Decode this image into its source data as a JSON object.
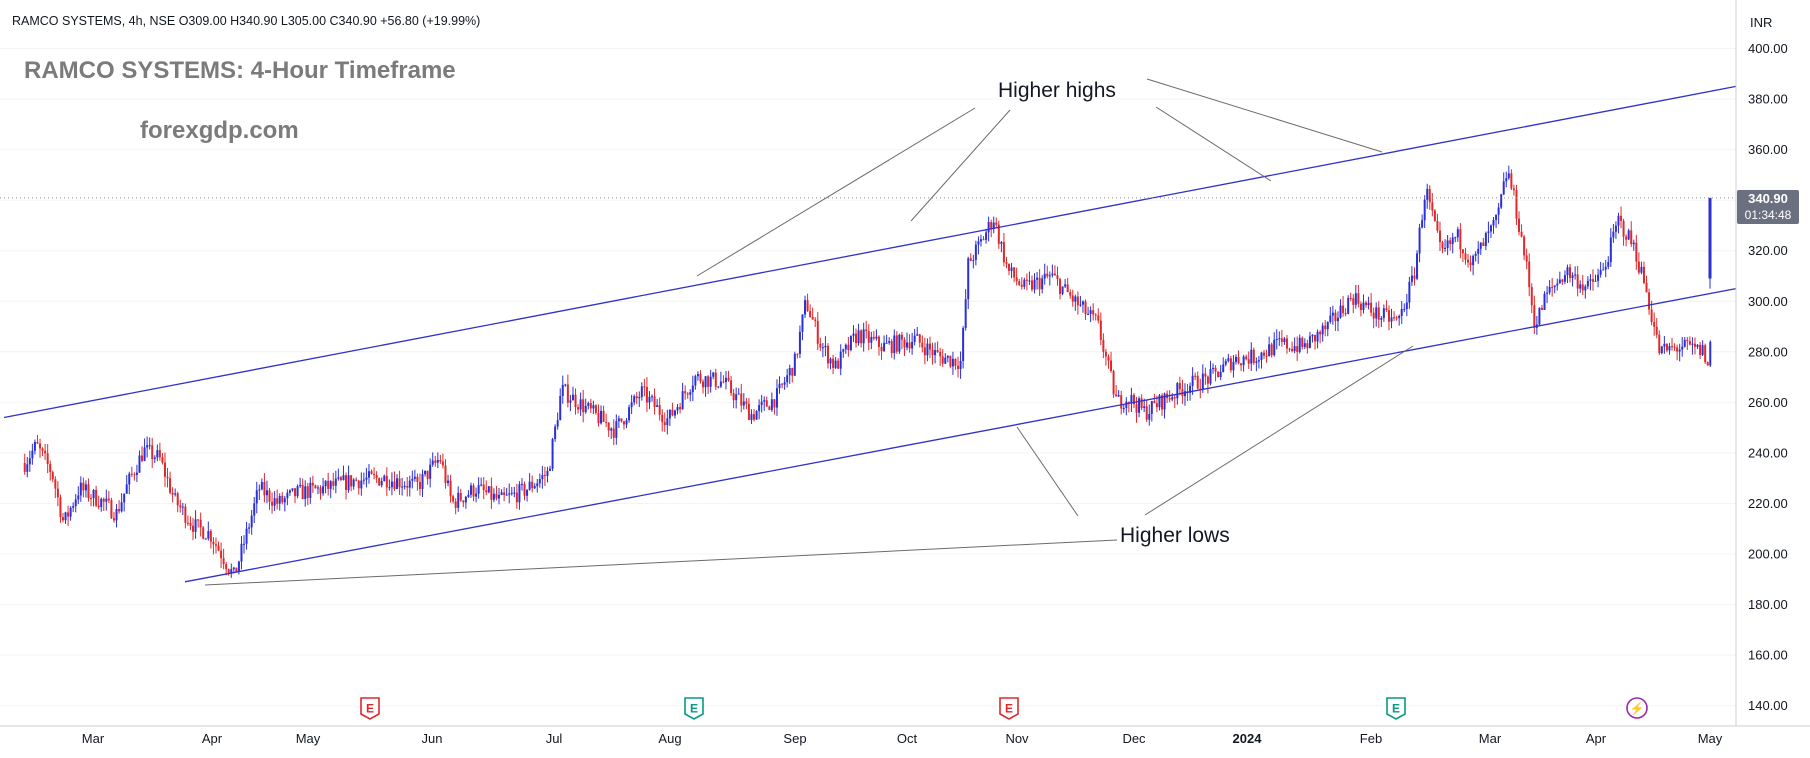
{
  "header": {
    "symbol": "RAMCO SYSTEMS",
    "timeframe": "4h",
    "exchange": "NSE",
    "ohlc_line": "RAMCO SYSTEMS, 4h, NSE  O309.00  H340.90  L305.00  C340.90  +56.80 (+19.99%)"
  },
  "watermark": {
    "title": "RAMCO SYSTEMS: 4-Hour Timeframe",
    "site": "forexgdp.com"
  },
  "currency": "INR",
  "price_tag": {
    "price": "340.90",
    "countdown": "01:34:48"
  },
  "annotations": {
    "higher_highs": "Higher highs",
    "higher_lows": "Higher lows"
  },
  "event_markers": [
    "E",
    "E",
    "E",
    "E",
    "⚡"
  ],
  "colors": {
    "up": "#2a2fd6",
    "down": "#e0282b",
    "channel": "#2f31c8",
    "annotation_line": "#6b6b6b",
    "price_tag_bg": "#6b7080"
  },
  "chart_data": {
    "type": "candlestick",
    "title": "RAMCO SYSTEMS: 4-Hour Timeframe",
    "y_axis": {
      "range": [
        130,
        410
      ],
      "ticks": [
        140,
        160,
        180,
        200,
        220,
        240,
        260,
        280,
        300,
        320,
        340,
        360,
        380,
        400
      ]
    },
    "x_axis": {
      "labels": [
        "Mar",
        "Apr",
        "May",
        "Jun",
        "Jul",
        "Aug",
        "Sep",
        "Oct",
        "Nov",
        "Dec",
        "2024",
        "Feb",
        "Mar",
        "Apr",
        "May"
      ]
    },
    "last": {
      "open": 309.0,
      "high": 340.9,
      "low": 305.0,
      "close": 340.9,
      "change": 56.8,
      "change_pct": 19.99
    },
    "price_path": [
      {
        "t": "Feb 14",
        "p": 236
      },
      {
        "t": "Feb 17",
        "p": 243
      },
      {
        "t": "Feb 21",
        "p": 232
      },
      {
        "t": "Feb 24",
        "p": 212
      },
      {
        "t": "Feb 28",
        "p": 226
      },
      {
        "t": "Mar 3",
        "p": 221
      },
      {
        "t": "Mar 7",
        "p": 216
      },
      {
        "t": "Mar 10",
        "p": 228
      },
      {
        "t": "Mar 14",
        "p": 241
      },
      {
        "t": "Mar 18",
        "p": 238
      },
      {
        "t": "Mar 22",
        "p": 221
      },
      {
        "t": "Mar 27",
        "p": 211
      },
      {
        "t": "Mar 31",
        "p": 208
      },
      {
        "t": "Apr 4",
        "p": 200
      },
      {
        "t": "Apr 8",
        "p": 191
      },
      {
        "t": "Apr 12",
        "p": 208
      },
      {
        "t": "Apr 16",
        "p": 226
      },
      {
        "t": "Apr 22",
        "p": 220
      },
      {
        "t": "Apr 28",
        "p": 224
      },
      {
        "t": "May 5",
        "p": 226
      },
      {
        "t": "May 12",
        "p": 229
      },
      {
        "t": "May 20",
        "p": 230
      },
      {
        "t": "May 28",
        "p": 227
      },
      {
        "t": "Jun 3",
        "p": 238
      },
      {
        "t": "Jun 6",
        "p": 220
      },
      {
        "t": "Jun 12",
        "p": 226
      },
      {
        "t": "Jun 18",
        "p": 221
      },
      {
        "t": "Jun 24",
        "p": 225
      },
      {
        "t": "Jun 30",
        "p": 232
      },
      {
        "t": "Jul 3",
        "p": 265
      },
      {
        "t": "Jul 10",
        "p": 257
      },
      {
        "t": "Jul 17",
        "p": 249
      },
      {
        "t": "Jul 24",
        "p": 264
      },
      {
        "t": "Jul 31",
        "p": 253
      },
      {
        "t": "Aug 7",
        "p": 270
      },
      {
        "t": "Aug 14",
        "p": 268
      },
      {
        "t": "Aug 21",
        "p": 255
      },
      {
        "t": "Aug 27",
        "p": 262
      },
      {
        "t": "Sep 1",
        "p": 276
      },
      {
        "t": "Sep 4",
        "p": 300
      },
      {
        "t": "Sep 8",
        "p": 283
      },
      {
        "t": "Sep 12",
        "p": 274
      },
      {
        "t": "Sep 18",
        "p": 287
      },
      {
        "t": "Sep 25",
        "p": 282
      },
      {
        "t": "Oct 3",
        "p": 285
      },
      {
        "t": "Oct 10",
        "p": 278
      },
      {
        "t": "Oct 16",
        "p": 276
      },
      {
        "t": "Oct 18",
        "p": 315
      },
      {
        "t": "Oct 21",
        "p": 322
      },
      {
        "t": "Oct 25",
        "p": 333
      },
      {
        "t": "Oct 29",
        "p": 312
      },
      {
        "t": "Nov 3",
        "p": 305
      },
      {
        "t": "Nov 10",
        "p": 310
      },
      {
        "t": "Nov 16",
        "p": 300
      },
      {
        "t": "Nov 22",
        "p": 291
      },
      {
        "t": "Nov 27",
        "p": 260
      },
      {
        "t": "Nov 30",
        "p": 262
      },
      {
        "t": "Dec 4",
        "p": 256
      },
      {
        "t": "Dec 10",
        "p": 262
      },
      {
        "t": "Dec 16",
        "p": 267
      },
      {
        "t": "Dec 22",
        "p": 270
      },
      {
        "t": "Dec 28",
        "p": 277
      },
      {
        "t": "Jan 3",
        "p": 278
      },
      {
        "t": "Jan 9",
        "p": 283
      },
      {
        "t": "Jan 15",
        "p": 282
      },
      {
        "t": "Jan 21",
        "p": 290
      },
      {
        "t": "Jan 27",
        "p": 302
      },
      {
        "t": "Feb 2",
        "p": 295
      },
      {
        "t": "Feb 8",
        "p": 292
      },
      {
        "t": "Feb 12",
        "p": 310
      },
      {
        "t": "Feb 15",
        "p": 345
      },
      {
        "t": "Feb 19",
        "p": 318
      },
      {
        "t": "Feb 23",
        "p": 326
      },
      {
        "t": "Feb 27",
        "p": 315
      },
      {
        "t": "Mar 3",
        "p": 332
      },
      {
        "t": "Mar 6",
        "p": 352
      },
      {
        "t": "Mar 8",
        "p": 340
      },
      {
        "t": "Mar 11",
        "p": 318
      },
      {
        "t": "Mar 14",
        "p": 290
      },
      {
        "t": "Mar 17",
        "p": 302
      },
      {
        "t": "Mar 23",
        "p": 312
      },
      {
        "t": "Mar 29",
        "p": 305
      },
      {
        "t": "Apr 3",
        "p": 312
      },
      {
        "t": "Apr 7",
        "p": 332
      },
      {
        "t": "Apr 11",
        "p": 322
      },
      {
        "t": "Apr 14",
        "p": 307
      },
      {
        "t": "Apr 18",
        "p": 280
      },
      {
        "t": "Apr 24",
        "p": 282
      },
      {
        "t": "Apr 30",
        "p": 280
      },
      {
        "t": "May 4",
        "p": 268
      },
      {
        "t": "May 8",
        "p": 285
      },
      {
        "t": "May 11",
        "p": 292
      },
      {
        "t": "May 14",
        "p": 285
      },
      {
        "t": "May 16",
        "p": 340.9
      }
    ],
    "upper_channel": [
      {
        "t": "Feb 14",
        "p": 254
      },
      {
        "t": "Jun 14",
        "p": 385
      }
    ],
    "lower_channel": [
      {
        "t": "Apr 3",
        "p": 189
      },
      {
        "t": "Jun 14",
        "p": 305
      }
    ]
  }
}
